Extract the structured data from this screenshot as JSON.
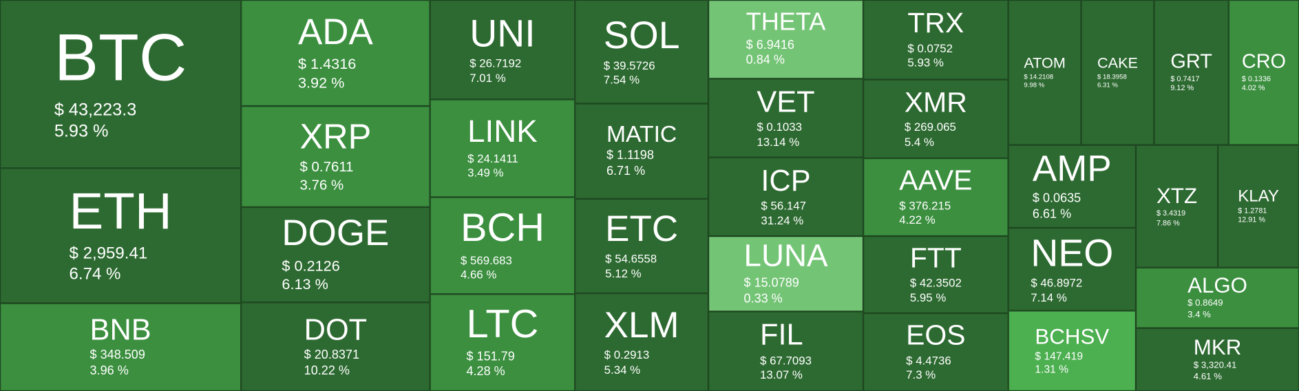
{
  "colors": {
    "dark": "#2d6a31",
    "medium": "#3b8f3f",
    "bright": "#4caf50",
    "light": "#74c476"
  },
  "tiles": [
    {
      "symbol": "BTC",
      "price": "$ 43,223.3",
      "change": "5.93 %",
      "shade": "dark"
    },
    {
      "symbol": "ETH",
      "price": "$ 2,959.41",
      "change": "6.74 %",
      "shade": "dark"
    },
    {
      "symbol": "BNB",
      "price": "$ 348.509",
      "change": "3.96 %",
      "shade": "medium"
    },
    {
      "symbol": "ADA",
      "price": "$ 1.4316",
      "change": "3.92 %",
      "shade": "medium"
    },
    {
      "symbol": "XRP",
      "price": "$ 0.7611",
      "change": "3.76 %",
      "shade": "medium"
    },
    {
      "symbol": "DOGE",
      "price": "$ 0.2126",
      "change": "6.13 %",
      "shade": "dark"
    },
    {
      "symbol": "DOT",
      "price": "$ 20.8371",
      "change": "10.22 %",
      "shade": "dark"
    },
    {
      "symbol": "UNI",
      "price": "$ 26.7192",
      "change": "7.01 %",
      "shade": "dark"
    },
    {
      "symbol": "LINK",
      "price": "$ 24.1411",
      "change": "3.49 %",
      "shade": "medium"
    },
    {
      "symbol": "BCH",
      "price": "$ 569.683",
      "change": "4.66 %",
      "shade": "medium"
    },
    {
      "symbol": "LTC",
      "price": "$ 151.79",
      "change": "4.28 %",
      "shade": "medium"
    },
    {
      "symbol": "SOL",
      "price": "$ 39.5726",
      "change": "7.54 %",
      "shade": "dark"
    },
    {
      "symbol": "MATIC",
      "price": "$ 1.1198",
      "change": "6.71 %",
      "shade": "dark"
    },
    {
      "symbol": "ETC",
      "price": "$ 54.6558",
      "change": "5.12 %",
      "shade": "dark"
    },
    {
      "symbol": "XLM",
      "price": "$ 0.2913",
      "change": "5.34 %",
      "shade": "dark"
    },
    {
      "symbol": "THETA",
      "price": "$ 6.9416",
      "change": "0.84 %",
      "shade": "light"
    },
    {
      "symbol": "VET",
      "price": "$ 0.1033",
      "change": "13.14 %",
      "shade": "dark"
    },
    {
      "symbol": "ICP",
      "price": "$ 56.147",
      "change": "31.24 %",
      "shade": "dark"
    },
    {
      "symbol": "LUNA",
      "price": "$ 15.0789",
      "change": "0.33 %",
      "shade": "light"
    },
    {
      "symbol": "FIL",
      "price": "$ 67.7093",
      "change": "13.07 %",
      "shade": "dark"
    },
    {
      "symbol": "TRX",
      "price": "$ 0.0752",
      "change": "5.93 %",
      "shade": "dark"
    },
    {
      "symbol": "XMR",
      "price": "$ 269.065",
      "change": "5.4 %",
      "shade": "dark"
    },
    {
      "symbol": "AAVE",
      "price": "$ 376.215",
      "change": "4.22 %",
      "shade": "medium"
    },
    {
      "symbol": "FTT",
      "price": "$ 42.3502",
      "change": "5.95 %",
      "shade": "dark"
    },
    {
      "symbol": "EOS",
      "price": "$ 4.4736",
      "change": "7.3 %",
      "shade": "dark"
    },
    {
      "symbol": "ATOM",
      "price": "$ 14.2108",
      "change": "9.98 %",
      "shade": "dark"
    },
    {
      "symbol": "CAKE",
      "price": "$ 18.3958",
      "change": "6.31 %",
      "shade": "dark"
    },
    {
      "symbol": "GRT",
      "price": "$ 0.7417",
      "change": "9.12 %",
      "shade": "dark"
    },
    {
      "symbol": "CRO",
      "price": "$ 0.1336",
      "change": "4.02 %",
      "shade": "medium"
    },
    {
      "symbol": "AMP",
      "price": "$ 0.0635",
      "change": "6.61 %",
      "shade": "dark"
    },
    {
      "symbol": "NEO",
      "price": "$ 46.8972",
      "change": "7.14 %",
      "shade": "dark"
    },
    {
      "symbol": "BCHSV",
      "price": "$ 147.419",
      "change": "1.31 %",
      "shade": "bright"
    },
    {
      "symbol": "XTZ",
      "price": "$ 3.4319",
      "change": "7.86 %",
      "shade": "dark"
    },
    {
      "symbol": "KLAY",
      "price": "$ 1.2781",
      "change": "12.91 %",
      "shade": "dark"
    },
    {
      "symbol": "ALGO",
      "price": "$ 0.8649",
      "change": "3.4 %",
      "shade": "medium"
    },
    {
      "symbol": "MKR",
      "price": "$ 3,320.41",
      "change": "4.61 %",
      "shade": "dark"
    }
  ]
}
